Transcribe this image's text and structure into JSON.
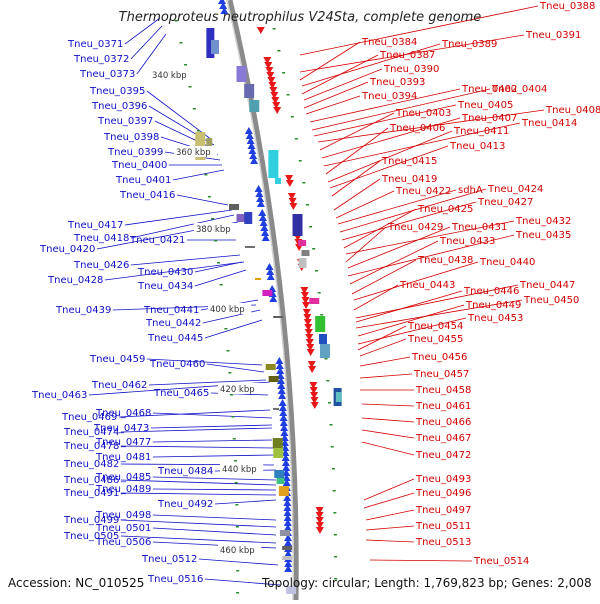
{
  "title": "Thermoproteus neutrophilus V24Sta, complete genome",
  "footer": {
    "accession": "Accession: NC_010525",
    "summary": "Topology: circular; Length: 1,769,823 bp; Genes: 2,008"
  },
  "colors": {
    "left_label": "#1010c8",
    "right_label": "#d40000",
    "backbone": "#8a8a8a",
    "forward_strand": "#1f3fe0",
    "reverse_strand": "#e81818",
    "tick": "#2a8a2a"
  },
  "scale_labels": [
    "340 kbp",
    "360 kbp",
    "380 kbp",
    "400 kbp",
    "420 kbp",
    "440 kbp",
    "460 kbp"
  ],
  "left_labels": [
    "Tneu_0371",
    "Tneu_0372",
    "Tneu_0373",
    "Tneu_0395",
    "Tneu_0396",
    "Tneu_0397",
    "Tneu_0398",
    "Tneu_0399",
    "Tneu_0400",
    "Tneu_0401",
    "Tneu_0416",
    "Tneu_0417",
    "Tneu_0418",
    "Tneu_0421",
    "Tneu_0420",
    "Tneu_0426",
    "Tneu_0430",
    "Tneu_0428",
    "Tneu_0434",
    "Tneu_0439",
    "Tneu_0441",
    "Tneu_0442",
    "Tneu_0445",
    "Tneu_0459",
    "Tneu_0460",
    "Tneu_0462",
    "Tneu_0465",
    "Tneu_0463",
    "Tneu_0469",
    "Tneu_0468",
    "Tneu_0473",
    "Tneu_0474",
    "Tneu_0477",
    "Tneu_0478",
    "Tneu_0481",
    "Tneu_0482",
    "Tneu_0484",
    "Tneu_0485",
    "Tneu_0486",
    "Tneu_0489",
    "Tneu_0491",
    "Tneu_0492",
    "Tneu_0498",
    "Tneu_0499",
    "Tneu_0501",
    "Tneu_0505",
    "Tneu_0506",
    "Tneu_0512",
    "Tneu_0516"
  ],
  "right_labels": [
    "Tneu_0388",
    "Tneu_0391",
    "Tneu_0384",
    "Tneu_0389",
    "Tneu_0387",
    "Tneu_0390",
    "Tneu_0393",
    "Tneu_0394",
    "Tneu_0402",
    "Tneu_0404",
    "Tneu_0405",
    "Tneu_0408",
    "Tneu_0403",
    "Tneu_0407",
    "Tneu_0414",
    "Tneu_0406",
    "Tneu_0411",
    "Tneu_0413",
    "Tneu_0415",
    "Tneu_0419",
    "Tneu_0422",
    "sdhA",
    "Tneu_0424",
    "Tneu_0427",
    "Tneu_0425",
    "Tneu_0432",
    "Tneu_0429",
    "Tneu_0431",
    "Tneu_0435",
    "Tneu_0433",
    "Tneu_0438",
    "Tneu_0440",
    "Tneu_0443",
    "Tneu_0447",
    "Tneu_0446",
    "Tneu_0450",
    "Tneu_0449",
    "Tneu_0453",
    "Tneu_0454",
    "Tneu_0455",
    "Tneu_0456",
    "Tneu_0457",
    "Tneu_0458",
    "Tneu_0461",
    "Tneu_0466",
    "Tneu_0467",
    "Tneu_0472",
    "Tneu_0493",
    "Tneu_0496",
    "Tneu_0497",
    "Tneu_0511",
    "Tneu_0513",
    "Tneu_0514"
  ]
}
